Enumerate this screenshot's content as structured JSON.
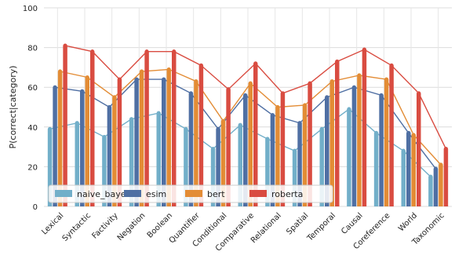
{
  "chart_data": {
    "type": "bar",
    "title": "",
    "xlabel": "",
    "ylabel": "P(correct|category)",
    "ylim": [
      0,
      100
    ],
    "yticks": [
      0,
      20,
      40,
      60,
      80,
      100
    ],
    "grid": true,
    "legend_position": "bottom-left",
    "categories": [
      "Lexical",
      "Syntactic",
      "Factivity",
      "Negation",
      "Boolean",
      "Quantifier",
      "Conditional",
      "Comparative",
      "Relational",
      "Spatial",
      "Temporal",
      "Causal",
      "Coreference",
      "World",
      "Taxonomic"
    ],
    "series": [
      {
        "name": "naive_bayes",
        "color": "#72afc9",
        "values": [
          39,
          42,
          35,
          44,
          47,
          39,
          29,
          41,
          34,
          28,
          39,
          49,
          37,
          28,
          15
        ]
      },
      {
        "name": "esim",
        "color": "#4f6fa3",
        "values": [
          60,
          58,
          50,
          64,
          64,
          57,
          39,
          56,
          46,
          42,
          55,
          60,
          56,
          37,
          19
        ]
      },
      {
        "name": "bert",
        "color": "#e38c35",
        "values": [
          68,
          65,
          55,
          68,
          69,
          63,
          43,
          62,
          50,
          51,
          63,
          66,
          64,
          36,
          21
        ]
      },
      {
        "name": "roberta",
        "color": "#d94c41",
        "values": [
          81,
          78,
          64,
          78,
          78,
          71,
          59,
          72,
          57,
          62,
          73,
          79,
          71,
          57,
          29
        ]
      }
    ]
  }
}
